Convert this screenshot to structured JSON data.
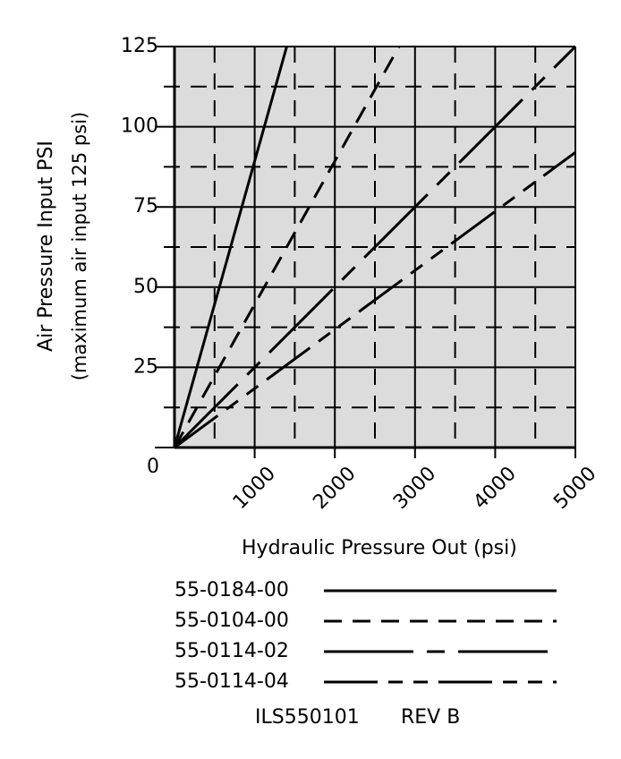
{
  "chart_data": {
    "type": "line",
    "y_label": [
      "Air Pressure Input PSI",
      "(maximum air input 125 psi)"
    ],
    "x_label": "Hydraulic Pressure Out (psi)",
    "xlim": [
      0,
      5000
    ],
    "ylim": [
      0,
      125
    ],
    "xticks": [
      1000,
      2000,
      3000,
      4000,
      5000
    ],
    "yticks": [
      0,
      25,
      50,
      75,
      100,
      125
    ],
    "minor_xticks": [
      500,
      1500,
      2500,
      3500,
      4500
    ],
    "minor_yticks": [
      12.5,
      37.5,
      62.5,
      87.5,
      112.5
    ],
    "grid": true,
    "background": "#dcdcdc",
    "series": [
      {
        "name": "55-0184-00",
        "color": "#000000",
        "linestyle": "solid",
        "x": [
          0,
          1400
        ],
        "values": [
          0,
          125
        ]
      },
      {
        "name": "55-0104-00",
        "color": "#000000",
        "linestyle": "dashed",
        "x": [
          0,
          2800
        ],
        "values": [
          0,
          125
        ]
      },
      {
        "name": "55-0114-02",
        "color": "#000000",
        "linestyle": "longdash-dash",
        "x": [
          0,
          5000
        ],
        "values": [
          0,
          125
        ]
      },
      {
        "name": "55-0114-04",
        "color": "#000000",
        "linestyle": "longdash-dashdash",
        "x": [
          0,
          5000
        ],
        "values": [
          0,
          92
        ]
      }
    ],
    "footer": [
      "ILS550101",
      "REV B"
    ]
  }
}
